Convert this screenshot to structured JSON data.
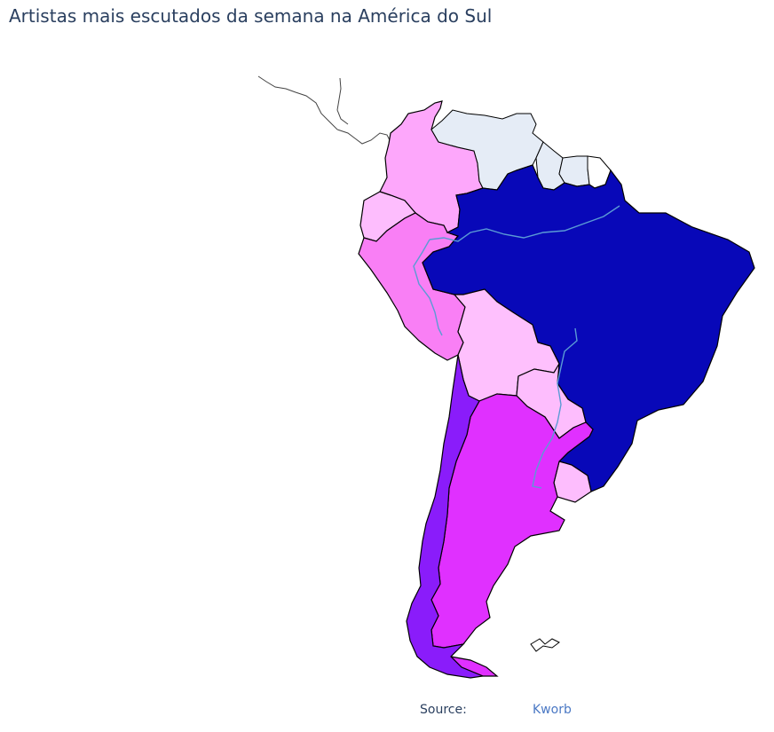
{
  "title": "Artistas mais escutados da semana na América do Sul",
  "source": {
    "label": "Source:",
    "link_text": "Kworb"
  },
  "colors": {
    "no_data": "#e5ecf6",
    "outline": "#444444",
    "river": "#5b9bd5",
    "background": "#ffffff"
  },
  "regions": [
    {
      "id": "colombia",
      "fill": "#fda7fb"
    },
    {
      "id": "ecuador",
      "fill": "#fdbdfd"
    },
    {
      "id": "peru",
      "fill": "#f97ff5"
    },
    {
      "id": "venezuela",
      "fill": "#e5ecf6"
    },
    {
      "id": "guyana",
      "fill": "#e5ecf6"
    },
    {
      "id": "suriname",
      "fill": "#e5ecf6"
    },
    {
      "id": "french-guiana",
      "fill": "#ffffff"
    },
    {
      "id": "brazil",
      "fill": "#0808b8"
    },
    {
      "id": "bolivia",
      "fill": "#fec0fd"
    },
    {
      "id": "paraguay",
      "fill": "#fdbdfd"
    },
    {
      "id": "uruguay",
      "fill": "#fdbdfd"
    },
    {
      "id": "argentina",
      "fill": "#e030ff"
    },
    {
      "id": "chile",
      "fill": "#8a1cfa"
    },
    {
      "id": "falklands",
      "fill": "#ffffff"
    }
  ]
}
